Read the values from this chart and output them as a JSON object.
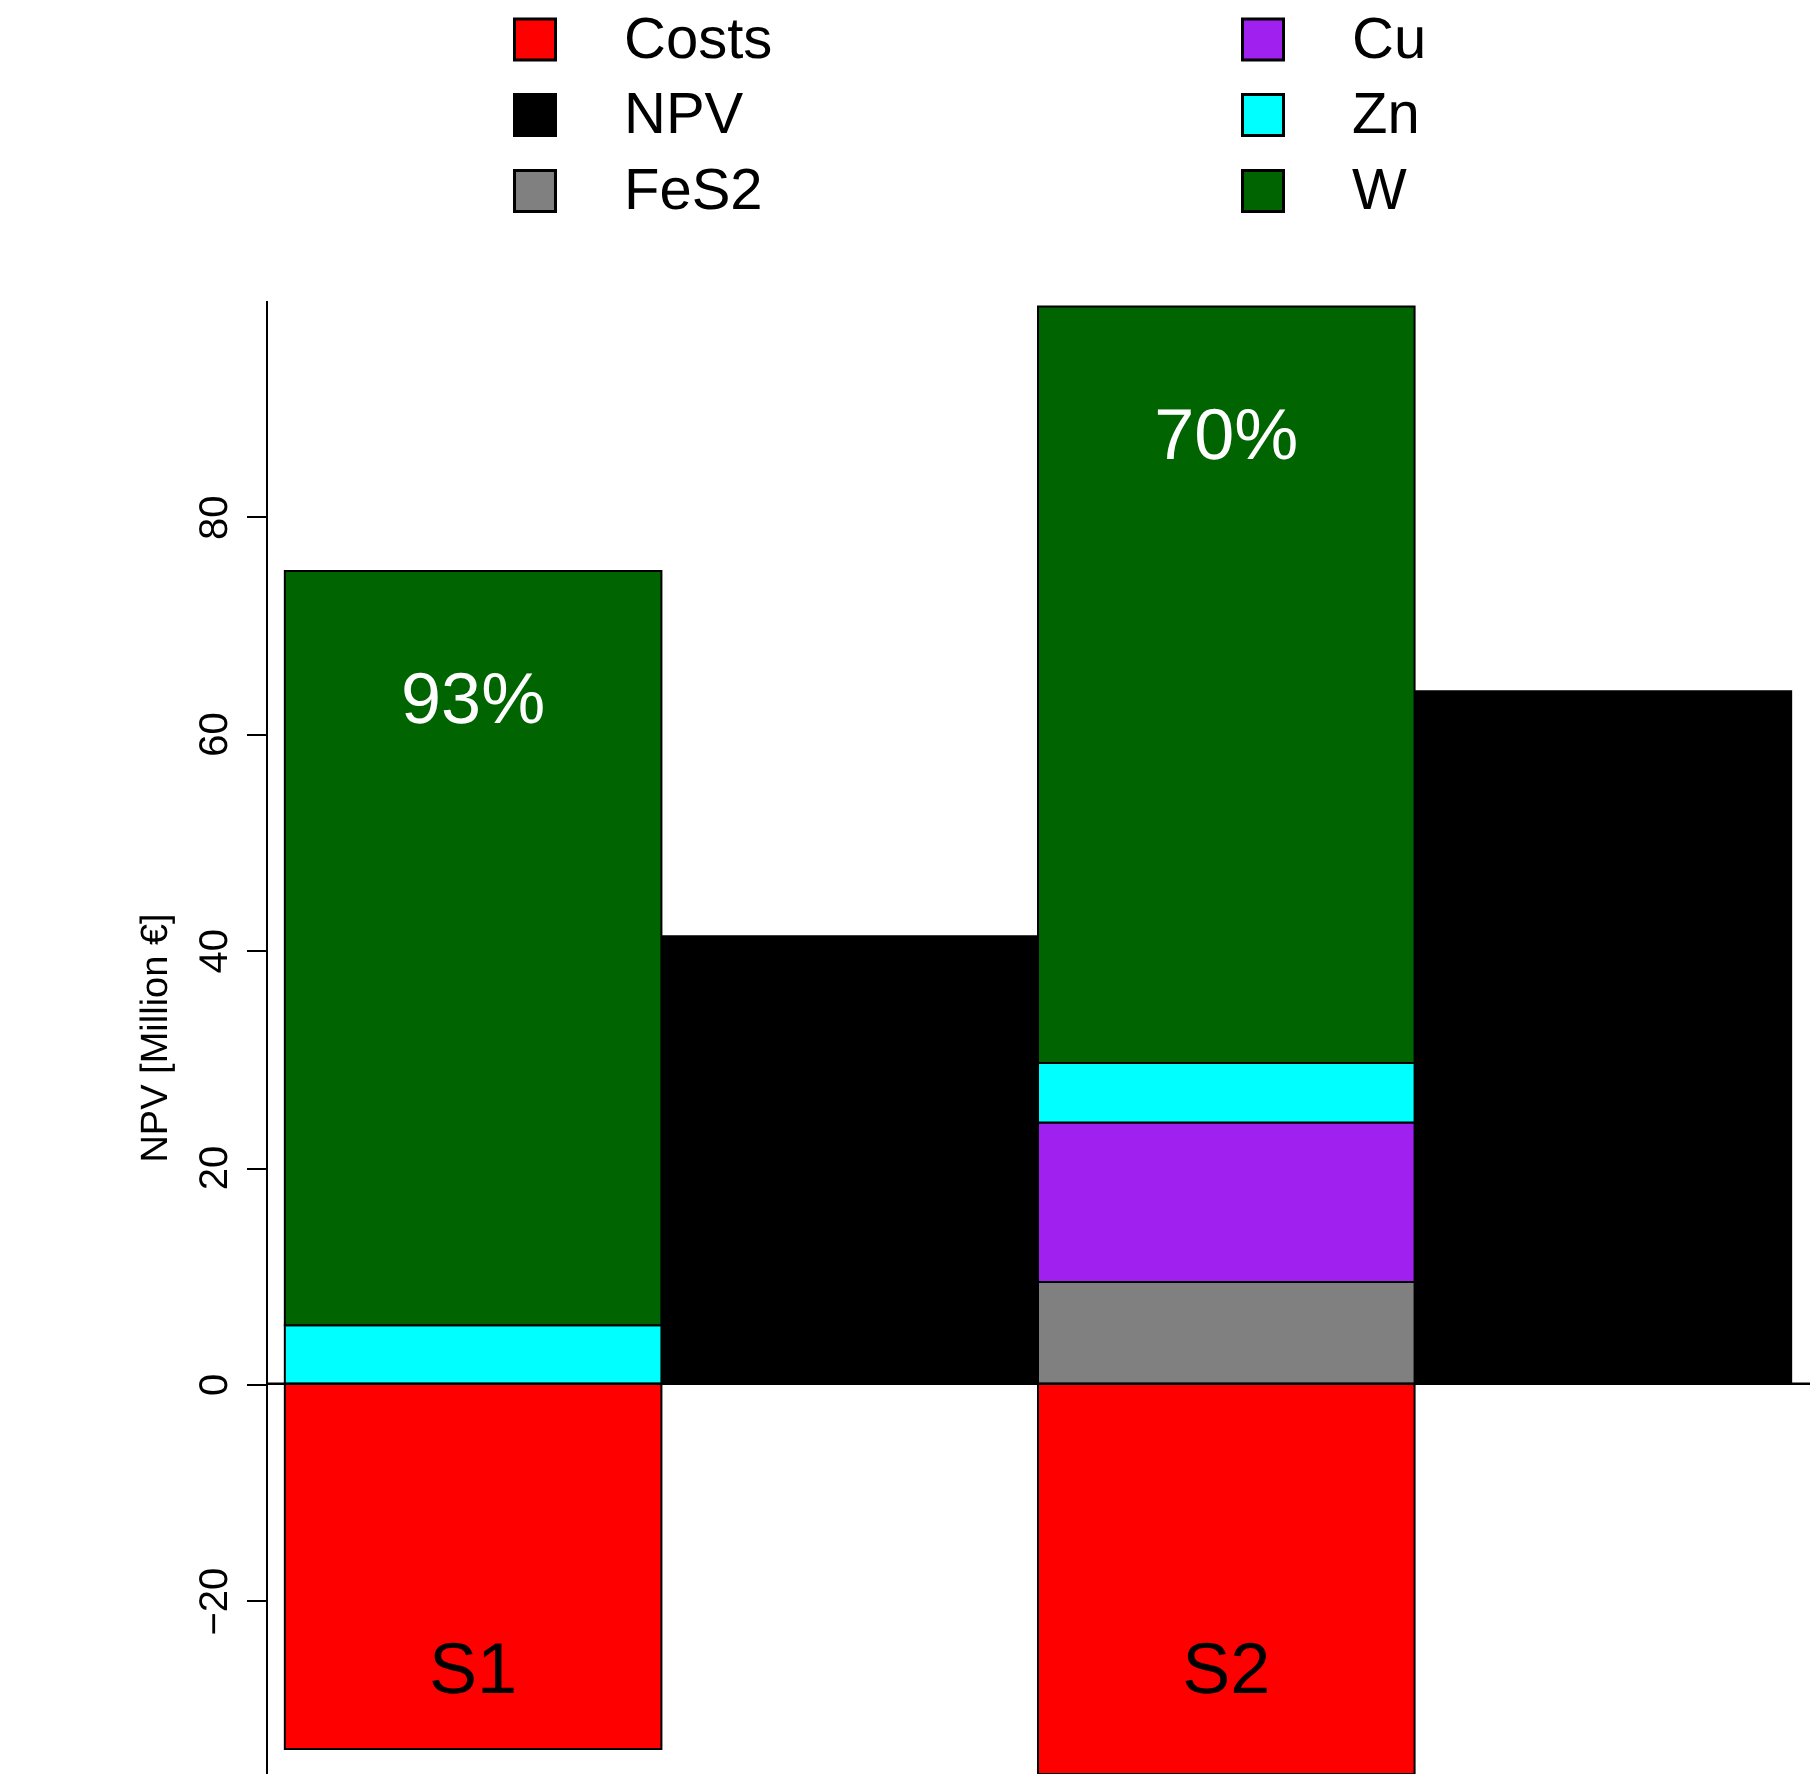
{
  "chart_data": {
    "type": "bar",
    "ylabel": "NPV [Million €]",
    "categories": [
      "S1",
      null,
      "S2",
      null
    ],
    "stacked": true,
    "series": [
      {
        "name": "Costs",
        "color": "#ff0000",
        "values": [
          -33.7,
          null,
          -36,
          null
        ]
      },
      {
        "name": "NPV",
        "color": "#000000",
        "values": [
          null,
          41.3,
          null,
          63.9
        ]
      },
      {
        "name": "FeS2",
        "color": "#808080",
        "values": [
          null,
          null,
          9.4,
          null
        ]
      },
      {
        "name": "Cu",
        "color": "#a020f0",
        "values": [
          null,
          null,
          14.7,
          null
        ]
      },
      {
        "name": "Zn",
        "color": "#00ffff",
        "values": [
          5.4,
          null,
          5.5,
          null
        ]
      },
      {
        "name": "W",
        "color": "#006400",
        "values": [
          69.6,
          null,
          69.8,
          null
        ]
      }
    ],
    "ylim": [
      -36,
      100
    ],
    "yticks": [
      -20,
      0,
      20,
      40,
      60,
      80
    ],
    "grid": false,
    "legend": "top",
    "ref_lines": [
      {
        "axis": "y",
        "value": 0
      }
    ],
    "annotations": [
      "93%",
      "70%"
    ]
  }
}
